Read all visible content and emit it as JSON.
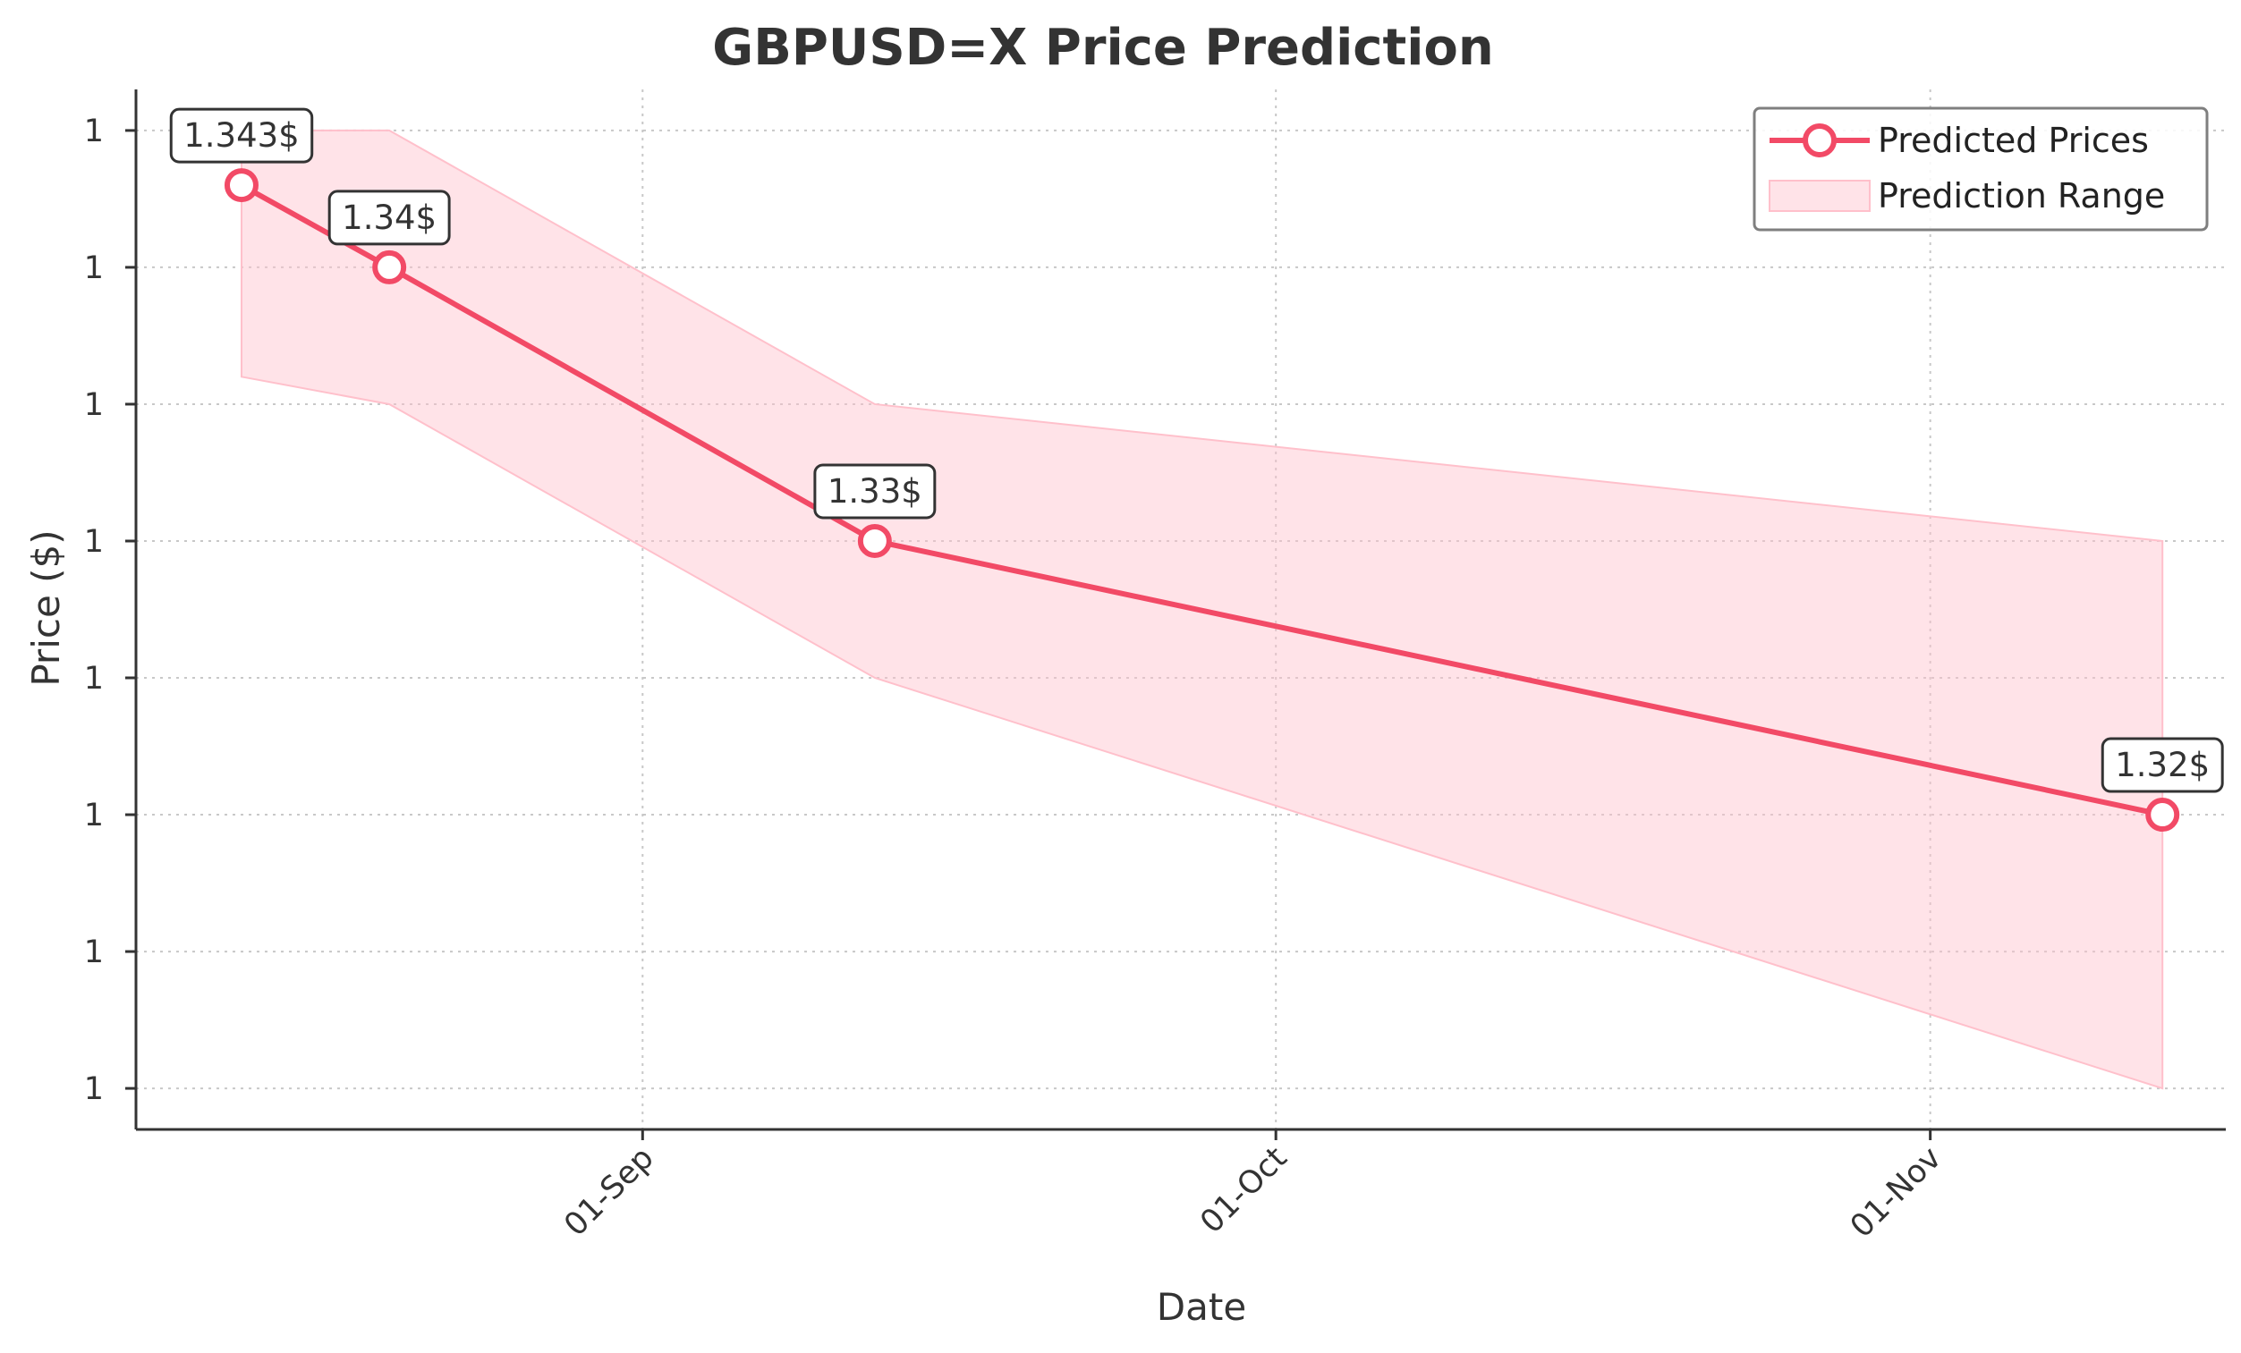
{
  "chart_data": {
    "type": "line",
    "title": "GBPUSD=X Price Prediction",
    "xlabel": "Date",
    "ylabel": "Price ($)",
    "x_ticks": [
      "01-Sep",
      "01-Oct",
      "01-Nov"
    ],
    "y_ticks": [
      "1",
      "1",
      "1",
      "1",
      "1",
      "1",
      "1",
      "1"
    ],
    "grid": true,
    "legend_position": "top-right",
    "series": [
      {
        "name": "Predicted Prices",
        "type": "line",
        "color": "#f24a66",
        "marker": "circle-open",
        "points": [
          {
            "x": "2024-08-13",
            "y": 1.343,
            "label": "1.343$"
          },
          {
            "x": "2024-08-20",
            "y": 1.34,
            "label": "1.34$"
          },
          {
            "x": "2024-09-12",
            "y": 1.33,
            "label": "1.33$"
          },
          {
            "x": "2024-11-12",
            "y": 1.32,
            "label": "1.32$"
          }
        ]
      },
      {
        "name": "Prediction Range",
        "type": "area",
        "color": "#ffc0cb",
        "points": [
          {
            "x": "2024-08-13",
            "upper": 1.345,
            "lower": 1.336
          },
          {
            "x": "2024-08-20",
            "upper": 1.345,
            "lower": 1.335
          },
          {
            "x": "2024-09-12",
            "upper": 1.335,
            "lower": 1.325
          },
          {
            "x": "2024-11-12",
            "upper": 1.33,
            "lower": 1.31
          }
        ]
      }
    ]
  }
}
